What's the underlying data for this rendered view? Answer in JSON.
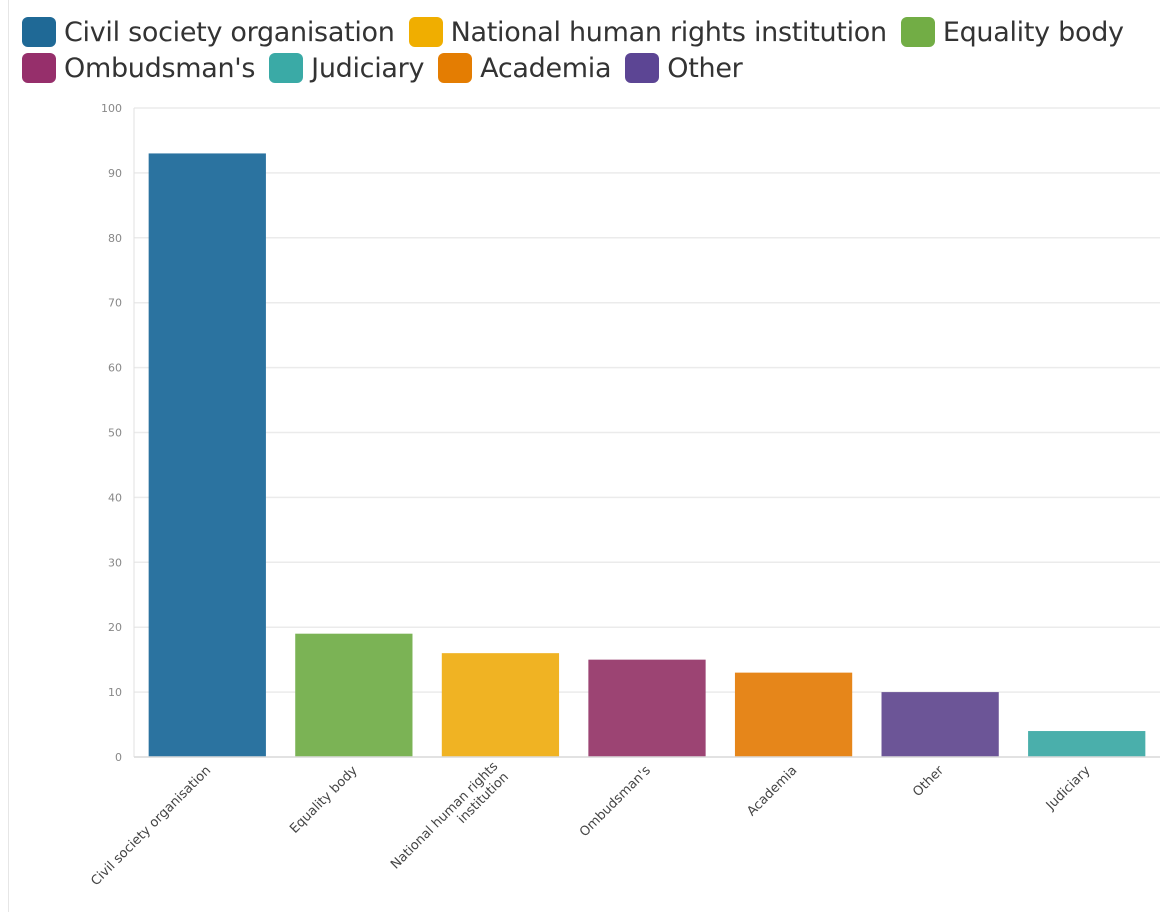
{
  "legend": [
    {
      "label": "Civil society organisation",
      "color": "#1f6996"
    },
    {
      "label": "National human rights institution",
      "color": "#f0ae00"
    },
    {
      "label": "Equality body",
      "color": "#72ad45"
    },
    {
      "label": "Ombudsman's",
      "color": "#962f6b"
    },
    {
      "label": "Judiciary",
      "color": "#3aaaa6"
    },
    {
      "label": "Academia",
      "color": "#e47d02"
    },
    {
      "label": "Other",
      "color": "#5c4594"
    }
  ],
  "chart_data": {
    "type": "bar",
    "categories": [
      [
        "Civil society organisation"
      ],
      [
        "Equality body"
      ],
      [
        "National human rights",
        "institution"
      ],
      [
        "Ombudsman's"
      ],
      [
        "Academia"
      ],
      [
        "Other"
      ],
      [
        "Judiciary"
      ]
    ],
    "values": [
      93,
      19,
      16,
      15,
      13,
      10,
      4
    ],
    "colors": [
      "#2b73a0",
      "#7bb355",
      "#f0b323",
      "#9c4473",
      "#e6861a",
      "#6c5597",
      "#4aafab"
    ],
    "ylim": [
      0,
      100
    ],
    "yticks": [
      0,
      10,
      20,
      30,
      40,
      50,
      60,
      70,
      80,
      90,
      100
    ],
    "grid": true,
    "legend_position": "top"
  }
}
